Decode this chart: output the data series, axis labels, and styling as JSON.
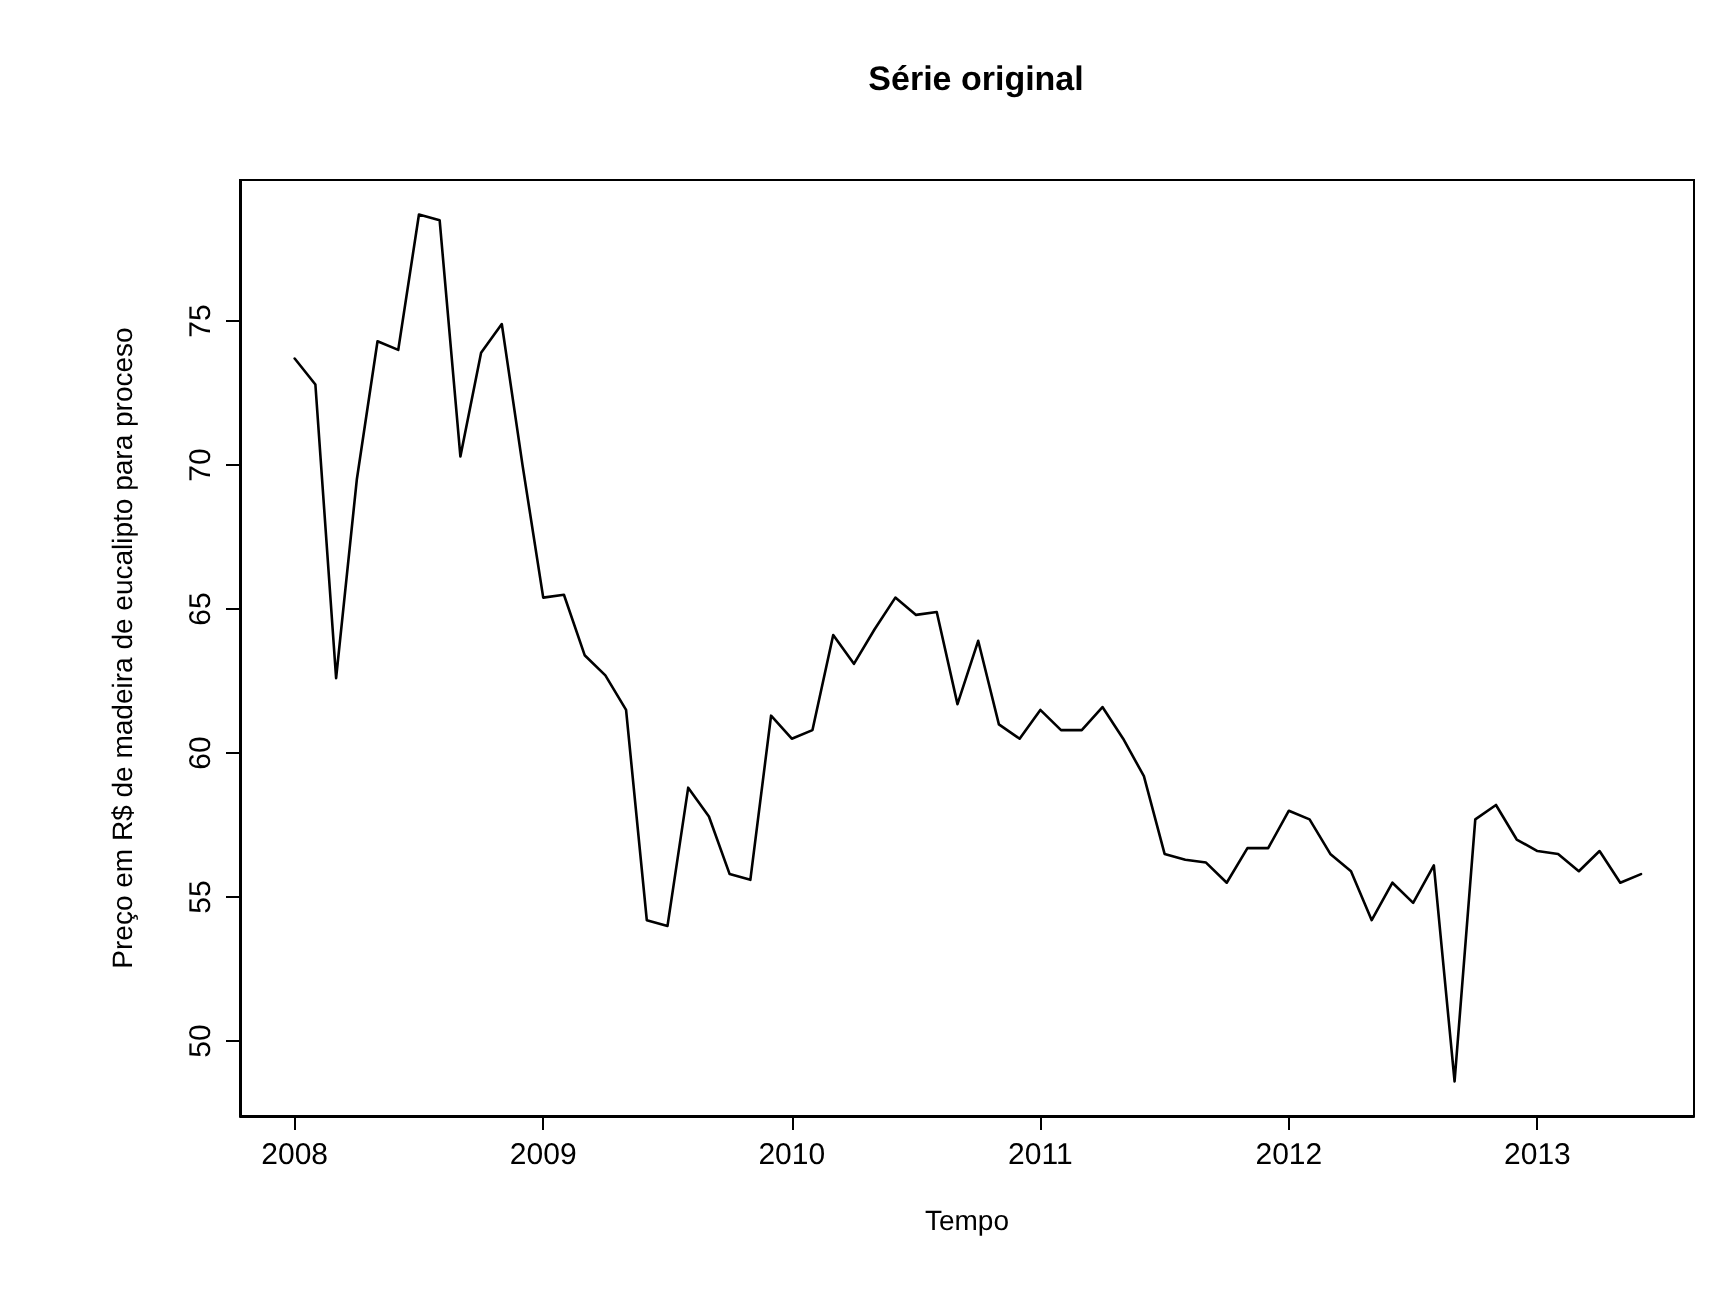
{
  "chart_data": {
    "type": "line",
    "title": "Série original",
    "xlabel": "Tempo",
    "ylabel": "Preço em R$ de madeira de eucalipto para proceso",
    "x": [
      2008,
      2008.0833,
      2008.1667,
      2008.25,
      2008.3333,
      2008.4167,
      2008.5,
      2008.5833,
      2008.6667,
      2008.75,
      2008.8333,
      2008.9167,
      2009,
      2009.0833,
      2009.1667,
      2009.25,
      2009.3333,
      2009.4167,
      2009.5,
      2009.5833,
      2009.6667,
      2009.75,
      2009.8333,
      2009.9167,
      2010,
      2010.0833,
      2010.1667,
      2010.25,
      2010.3333,
      2010.4167,
      2010.5,
      2010.5833,
      2010.6667,
      2010.75,
      2010.8333,
      2010.9167,
      2011,
      2011.0833,
      2011.1667,
      2011.25,
      2011.3333,
      2011.4167,
      2011.5,
      2011.5833,
      2011.6667,
      2011.75,
      2011.8333,
      2011.9167,
      2012,
      2012.0833,
      2012.1667,
      2012.25,
      2012.3333,
      2012.4167,
      2012.5,
      2012.5833,
      2012.6667,
      2012.75,
      2012.8333,
      2012.9167,
      2013,
      2013.0833,
      2013.1667,
      2013.25,
      2013.3333,
      2013.4167
    ],
    "series": [
      {
        "color": "#000000",
        "values": [
          73.7,
          72.8,
          62.6,
          69.5,
          74.3,
          74.0,
          78.7,
          78.5,
          70.3,
          73.9,
          74.9,
          70.0,
          65.4,
          65.5,
          63.4,
          62.7,
          61.5,
          54.2,
          54.0,
          58.8,
          57.8,
          55.8,
          55.6,
          61.3,
          60.5,
          60.8,
          64.1,
          63.1,
          64.3,
          65.4,
          64.8,
          64.9,
          61.7,
          63.9,
          61.0,
          60.5,
          61.5,
          60.8,
          60.8,
          61.6,
          60.5,
          59.2,
          56.5,
          56.3,
          56.2,
          55.5,
          56.7,
          56.7,
          58.0,
          57.7,
          56.5,
          55.9,
          54.2,
          55.5,
          54.8,
          56.1,
          48.6,
          57.7,
          58.2,
          57.0,
          56.6,
          56.5,
          55.9,
          56.6,
          55.5,
          55.8
        ]
      }
    ],
    "xlim": [
      2007.78,
      2013.63
    ],
    "xticks": [
      2008,
      2009,
      2010,
      2011,
      2012,
      2013
    ],
    "ylim": [
      47.4,
      79.9
    ],
    "yticks": [
      50,
      55,
      60,
      65,
      70,
      75
    ],
    "grid": false,
    "marker": "none",
    "line_style": "solid"
  }
}
